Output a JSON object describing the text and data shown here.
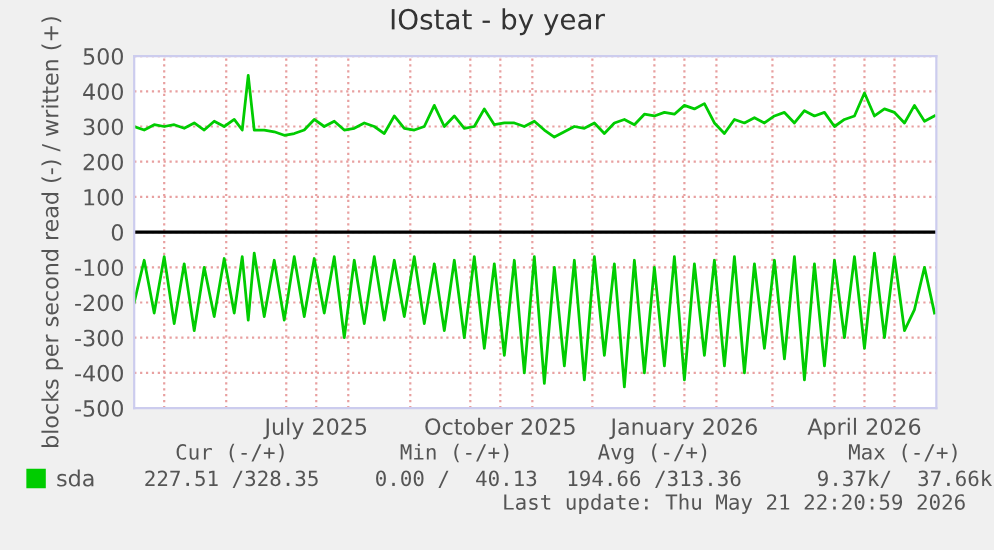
{
  "chart_data": {
    "type": "line",
    "title": "IOstat - by year",
    "ylabel": "blocks per second read (-) / written (+)",
    "x": [
      "2025-04-16",
      "2025-04-21",
      "2025-04-26",
      "2025-05-01",
      "2025-05-06",
      "2025-05-11",
      "2025-05-16",
      "2025-05-21",
      "2025-05-26",
      "2025-05-31",
      "2025-06-05",
      "2025-06-09",
      "2025-06-12",
      "2025-06-15",
      "2025-06-20",
      "2025-06-25",
      "2025-06-30",
      "2025-07-05",
      "2025-07-10",
      "2025-07-15",
      "2025-07-20",
      "2025-07-25",
      "2025-07-30",
      "2025-08-04",
      "2025-08-09",
      "2025-08-14",
      "2025-08-19",
      "2025-08-24",
      "2025-08-29",
      "2025-09-03",
      "2025-09-08",
      "2025-09-13",
      "2025-09-18",
      "2025-09-23",
      "2025-09-28",
      "2025-10-03",
      "2025-10-08",
      "2025-10-13",
      "2025-10-18",
      "2025-10-23",
      "2025-10-28",
      "2025-11-02",
      "2025-11-07",
      "2025-11-12",
      "2025-11-17",
      "2025-11-22",
      "2025-11-27",
      "2025-12-02",
      "2025-12-07",
      "2025-12-12",
      "2025-12-17",
      "2025-12-22",
      "2025-12-27",
      "2026-01-01",
      "2026-01-06",
      "2026-01-11",
      "2026-01-16",
      "2026-01-21",
      "2026-01-26",
      "2026-01-31",
      "2026-02-05",
      "2026-02-10",
      "2026-02-15",
      "2026-02-20",
      "2026-02-25",
      "2026-03-02",
      "2026-03-07",
      "2026-03-12",
      "2026-03-17",
      "2026-03-22",
      "2026-03-27",
      "2026-04-01",
      "2026-04-06",
      "2026-04-11",
      "2026-04-16",
      "2026-04-21",
      "2026-04-26",
      "2026-05-01",
      "2026-05-06",
      "2026-05-11",
      "2026-05-16",
      "2026-05-21"
    ],
    "series": [
      {
        "name": "sda",
        "color": "#00cc00",
        "values": [
          300,
          290,
          305,
          300,
          305,
          295,
          310,
          290,
          315,
          300,
          320,
          290,
          445,
          290,
          290,
          285,
          275,
          280,
          290,
          320,
          300,
          315,
          290,
          295,
          310,
          300,
          280,
          330,
          295,
          290,
          300,
          360,
          300,
          330,
          295,
          300,
          350,
          305,
          310,
          310,
          300,
          315,
          290,
          270,
          285,
          300,
          295,
          310,
          280,
          310,
          320,
          305,
          335,
          330,
          340,
          335,
          360,
          350,
          365,
          310,
          280,
          320,
          310,
          325,
          310,
          330,
          340,
          310,
          345,
          330,
          340,
          300,
          320,
          330,
          395,
          330,
          350,
          340,
          310,
          360,
          315,
          330
        ]
      },
      {
        "color": "#00cc00",
        "values": [
          -200,
          -80,
          -230,
          -70,
          -260,
          -90,
          -280,
          -100,
          -240,
          -75,
          -230,
          -70,
          -250,
          -60,
          -240,
          -80,
          -250,
          -70,
          -240,
          -75,
          -230,
          -70,
          -300,
          -80,
          -260,
          -70,
          -250,
          -80,
          -240,
          -70,
          -260,
          -90,
          -280,
          -80,
          -300,
          -70,
          -330,
          -90,
          -350,
          -80,
          -400,
          -70,
          -430,
          -100,
          -380,
          -80,
          -420,
          -70,
          -350,
          -90,
          -440,
          -80,
          -400,
          -100,
          -380,
          -70,
          -420,
          -90,
          -350,
          -80,
          -380,
          -70,
          -400,
          -90,
          -330,
          -80,
          -360,
          -70,
          -420,
          -90,
          -380,
          -80,
          -300,
          -70,
          -330,
          -60,
          -300,
          -70,
          -280,
          -220,
          -100,
          -230
        ]
      }
    ],
    "xlim": [
      "2025-04-16",
      "2026-05-21T22:20"
    ],
    "xticks": [
      {
        "value": "2025-05-01",
        "label": null
      },
      {
        "value": "2025-06-01",
        "label": null
      },
      {
        "value": "2025-07-01",
        "label": null
      },
      {
        "value": "2025-07-16",
        "label": "July 2025"
      },
      {
        "value": "2025-08-01",
        "label": null
      },
      {
        "value": "2025-09-01",
        "label": null
      },
      {
        "value": "2025-10-01",
        "label": null
      },
      {
        "value": "2025-10-16",
        "label": "October 2025"
      },
      {
        "value": "2025-11-01",
        "label": null
      },
      {
        "value": "2025-12-01",
        "label": null
      },
      {
        "value": "2026-01-01",
        "label": null
      },
      {
        "value": "2026-01-16",
        "label": "January 2026"
      },
      {
        "value": "2026-02-01",
        "label": null
      },
      {
        "value": "2026-03-01",
        "label": null
      },
      {
        "value": "2026-04-01",
        "label": null
      },
      {
        "value": "2026-04-16",
        "label": "April 2026"
      },
      {
        "value": "2026-05-01",
        "label": null
      }
    ],
    "ylim": [
      -500,
      500
    ],
    "yticks": [
      -500,
      -400,
      -300,
      -200,
      -100,
      0,
      100,
      200,
      300,
      400,
      500
    ],
    "grid": true,
    "legend": "bottom",
    "ref_lines": [
      {
        "axis": "y",
        "value": 0,
        "color": "#000000"
      }
    ],
    "annotations": [
      "Cur (-/+)",
      "Min (-/+)",
      "Avg (-/+)",
      "Max (-/+)",
      "227.51 /328.35",
      "0.00 /  40.13",
      "194.66 /313.36",
      "9.37k/  37.66k",
      "Last update: Thu May 21 22:20:59 2026"
    ]
  }
}
